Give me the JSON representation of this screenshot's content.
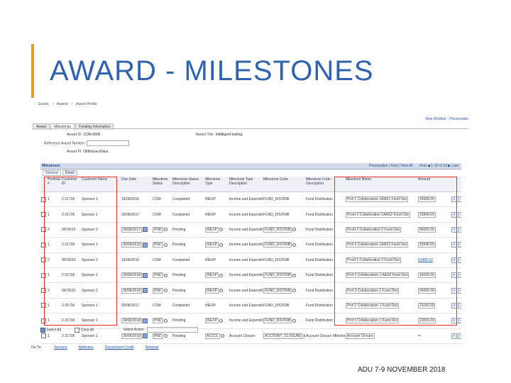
{
  "slide": {
    "title": "AWARD - MILESTONES",
    "footer": "ADU 7-9 NOVEMBER 2018",
    "accent_color": "#e0a12a",
    "title_color": "#2f63b1"
  },
  "screenshot": {
    "breadcrumbs": [
      "Grants",
      "Awards",
      "Award Profile"
    ],
    "top_links": [
      "New Window",
      "Personalize"
    ],
    "tabs": [
      "Award",
      "Milestones",
      "Funding Information"
    ],
    "active_tab": "Milestones",
    "award_id_label": "Award ID",
    "award_id": "CON-9606",
    "award_title_label": "Award Title",
    "award_title": "Intelligent tooling",
    "ref_award_label": "Reference Award Number",
    "award_pi_label": "Award PI",
    "award_pi": "Oldhouse,Klaus",
    "grid": {
      "title": "Milestones",
      "personalize": "Personalize",
      "find": "Find",
      "view_all": "View All",
      "first": "First",
      "range": "1-10 of 10",
      "last": "Last",
      "subtabs": [
        "General",
        "Detail"
      ],
      "columns": [
        "",
        "Portfolio #",
        "Customer ID",
        "Customer Name",
        "Due Date",
        "Milestone Status",
        "Milestone Status Description",
        "Milestone Type",
        "Milestone Type Description",
        "Milestone Code",
        "Milestone Code Description",
        "Milestone Name",
        "Amount",
        ""
      ],
      "rows": [
        {
          "portfolio": "1",
          "customer_id": "2-21736",
          "customer_name": "Sponsor 1",
          "due_date": "15/06/2016",
          "status": "COM",
          "status_desc": "Completed",
          "type": "INEXP",
          "type_desc": "Income and Expenditure",
          "code": "FUND_DISTRIB",
          "code_desc": "Fund Distribution",
          "name": "Prof 1 Collaboration 1AAS1 Fund Dist",
          "amount": "15660.00",
          "editable": false
        },
        {
          "portfolio": "1",
          "customer_id": "2-21736",
          "customer_name": "Sponsor 1",
          "due_date": "30/06/2017",
          "status": "COM",
          "status_desc": "Completed",
          "type": "INEXP",
          "type_desc": "Income and Expenditure",
          "code": "FUND_DISTRIB",
          "code_desc": "Fund Distribution",
          "name": "Proof 2 Collaboration 1AAS2 Fund Dist",
          "amount": "15840.00",
          "editable": false
        },
        {
          "portfolio": "2",
          "customer_id": "9676510",
          "customer_name": "Sponsor 2",
          "due_date": "30/06/2017",
          "status": "PND",
          "status_desc": "Pending",
          "type": "INEXP",
          "type_desc": "Income and Expenditure",
          "code": "FUND_DISTRIB",
          "code_desc": "Fund Distribution",
          "name": "Proof 2 Collaboration 2 Fund Dist",
          "amount": "56000.00",
          "editable": true
        },
        {
          "portfolio": "1",
          "customer_id": "2-21736",
          "customer_name": "Sponsor 1",
          "due_date": "30/06/2018",
          "status": "PND",
          "status_desc": "Pending",
          "type": "INEXP",
          "type_desc": "Income and Expenditure",
          "code": "FUND_DISTRIB",
          "code_desc": "Fund Distribution",
          "name": "Prof 3 Collaboration 1AAS3 Fund Dist",
          "amount": "15940.00",
          "editable": true
        },
        {
          "portfolio": "2",
          "customer_id": "9676510",
          "customer_name": "Sponsor 2",
          "due_date": "15/06/2016",
          "status": "COM",
          "status_desc": "Completed",
          "type": "INEXP",
          "type_desc": "Income and Expenditure",
          "code": "FUND_DISTRIB",
          "code_desc": "Fund Distribution",
          "name": "Proof 1 Collaboration 2 Fund Dist",
          "amount": "52480.00",
          "editable": false,
          "amount_link": true
        },
        {
          "portfolio": "1",
          "customer_id": "2-21736",
          "customer_name": "Sponsor 1",
          "due_date": "30/06/2018",
          "status": "PND",
          "status_desc": "Pending",
          "type": "INEXP",
          "type_desc": "Income and Expenditure",
          "code": "FUND_DISTRIB",
          "code_desc": "Fund Distribution",
          "name": "Prof 3 Collaboration 1 AAS2 Fund Dist",
          "amount": "16000.00",
          "editable": true
        },
        {
          "portfolio": "2",
          "customer_id": "9676510",
          "customer_name": "Sponsor 2",
          "due_date": "30/06/2018",
          "status": "PND",
          "status_desc": "Pending",
          "type": "INEXP",
          "type_desc": "Income and Expenditure",
          "code": "FUND_DISTRIB",
          "code_desc": "Fund Distribution",
          "name": "Prof 3 Collaboration 2 Fund Dist",
          "amount": "56000.00",
          "editable": true
        },
        {
          "portfolio": "1",
          "customer_id": "2-21736",
          "customer_name": "Sponsor 1",
          "due_date": "30/06/2017",
          "status": "COM",
          "status_desc": "Completed",
          "type": "INEXP",
          "type_desc": "Income and Expenditure",
          "code": "FUND_DISTRIB",
          "code_desc": "Fund Distribution",
          "name": "Prof 2 Collaboration 1 Fund Dist",
          "amount": "21160.00",
          "editable": false
        },
        {
          "portfolio": "1",
          "customer_id": "2-21736",
          "customer_name": "Sponsor 1",
          "due_date": "30/06/2018",
          "status": "PND",
          "status_desc": "Pending",
          "type": "INEXP",
          "type_desc": "Income and Expenditure",
          "code": "FUND_DISTRIB",
          "code_desc": "Fund Distribution",
          "name": "Prof 3 Collaboration 1 Fund Dist",
          "amount": "23000.00",
          "editable": true
        },
        {
          "portfolio": "1",
          "customer_id": "2-21736",
          "customer_name": "Sponsor 1",
          "due_date": "30/06/2018",
          "status": "PND",
          "status_desc": "Pending",
          "type": "ACCCL",
          "type_desc": "Account Closure",
          "code": "ACCOUNT_CLOSURE",
          "code_desc": "Account Closure Milestone",
          "name": "Account Closure",
          "amount": "",
          "editable": true
        }
      ]
    },
    "select_all": "Select All",
    "clear_all": "Clear All",
    "select_action_label": "Select Action",
    "goto_label": "Go To:",
    "goto_links": [
      "Sponsor",
      "Attributes",
      "Department Credit",
      "Notepad"
    ]
  }
}
